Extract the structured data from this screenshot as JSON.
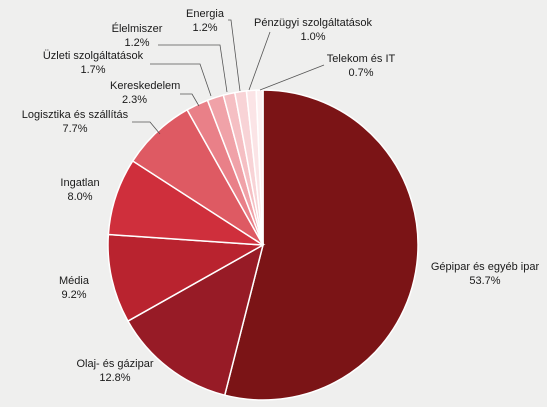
{
  "chart_data": {
    "type": "pie",
    "title": "",
    "slices": [
      {
        "label": "Gépipar és egyéb ipar",
        "value": 53.7,
        "value_label": "53.7%",
        "color": "#7b1416"
      },
      {
        "label": "Olaj- és gázipar",
        "value": 12.8,
        "value_label": "12.8%",
        "color": "#971b26"
      },
      {
        "label": "Média",
        "value": 9.2,
        "value_label": "9.2%",
        "color": "#b9232f"
      },
      {
        "label": "Ingatlan",
        "value": 8.0,
        "value_label": "8.0%",
        "color": "#cf2f3c"
      },
      {
        "label": "Logisztika és szállítás",
        "value": 7.7,
        "value_label": "7.7%",
        "color": "#de5a63"
      },
      {
        "label": "Kereskedelem",
        "value": 2.3,
        "value_label": "2.3%",
        "color": "#e98088"
      },
      {
        "label": "Üzleti szolgáltatások",
        "value": 1.7,
        "value_label": "1.7%",
        "color": "#f0a2a8"
      },
      {
        "label": "Élelmiszer",
        "value": 1.2,
        "value_label": "1.2%",
        "color": "#f5bfc3"
      },
      {
        "label": "Energia",
        "value": 1.2,
        "value_label": "1.2%",
        "color": "#f8d3d6"
      },
      {
        "label": "Pénzügyi szolgáltatások",
        "value": 1.0,
        "value_label": "1.0%",
        "color": "#fbe4e6"
      },
      {
        "label": "Telekom és IT",
        "value": 0.7,
        "value_label": "0.7%",
        "color": "#fdf1f2"
      }
    ],
    "start_angle": "12 o'clock",
    "direction": "clockwise",
    "legend": "none"
  }
}
